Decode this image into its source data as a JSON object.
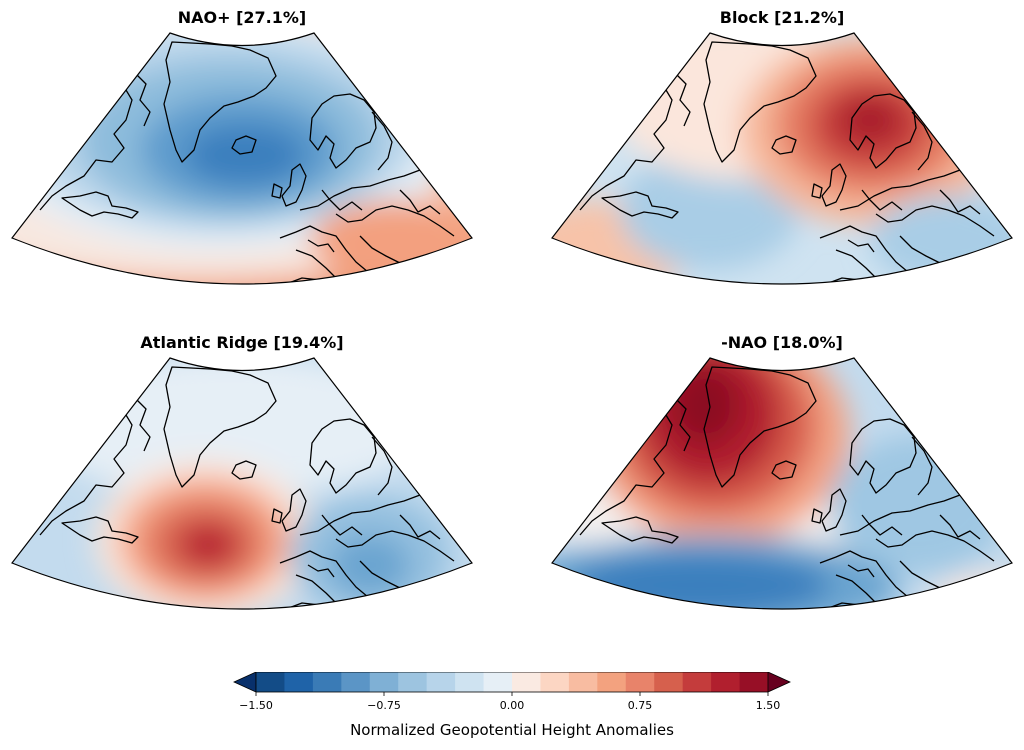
{
  "figure": {
    "panels": [
      {
        "id": "nao_plus",
        "title": "NAO+ [27.1%]"
      },
      {
        "id": "block",
        "title": "Block [21.2%]"
      },
      {
        "id": "atlantic_ridge",
        "title": "Atlantic Ridge [19.4%]"
      },
      {
        "id": "nao_minus",
        "title": "-NAO [18.0%]"
      }
    ],
    "colorbar": {
      "label": "Normalized Geopotential Height Anomalies",
      "min": -1.5,
      "max": 1.5,
      "ticks": [
        "−1.50",
        "−0.75",
        "0.00",
        "0.75",
        "1.50"
      ],
      "extend": "both",
      "colors": [
        "#08306b",
        "#134c87",
        "#1f63a8",
        "#3a7bb6",
        "#5b95c6",
        "#7fb0d5",
        "#9dc4e0",
        "#b7d4ea",
        "#cfe3f1",
        "#e6eff6",
        "#faeae2",
        "#fcd6c3",
        "#f8bca1",
        "#f3a27f",
        "#e8836a",
        "#d6604d",
        "#c43c3c",
        "#b11f2e",
        "#970f26",
        "#67001f"
      ]
    }
  }
}
